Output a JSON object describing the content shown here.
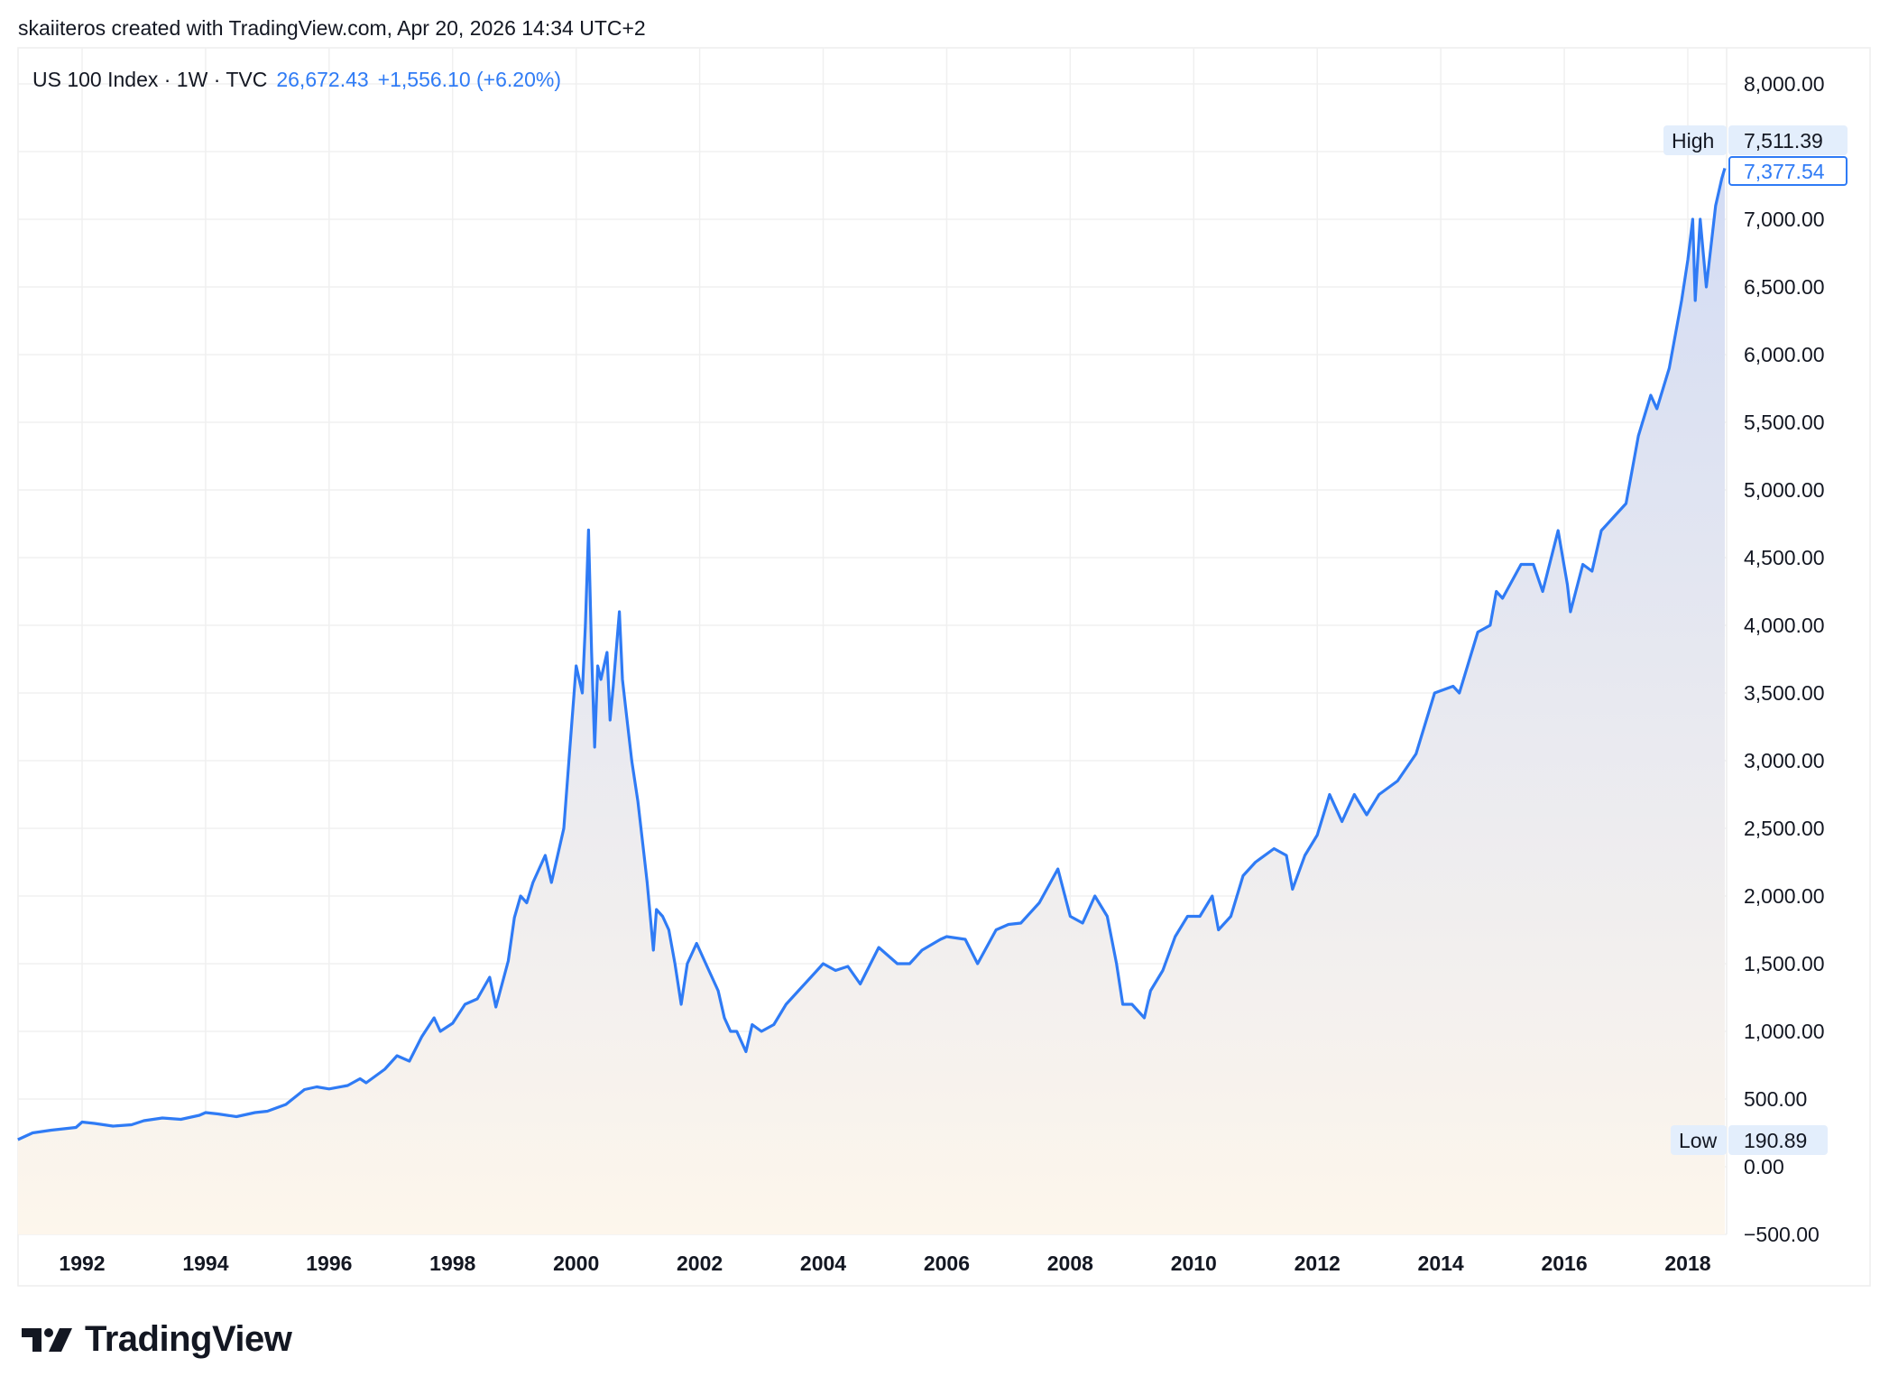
{
  "header": {
    "attribution": "skaiiteros created with TradingView.com, Apr 20, 2026 14:34 UTC+2",
    "symbol": "US 100 Index · 1W · TVC",
    "last_price": "26,672.43",
    "change": "+1,556.10 (+6.20%)"
  },
  "colors": {
    "line": "#2f7bf5",
    "fill_top": "#d3dcf4",
    "fill_bottom": "#fdf6ec",
    "grid": "#f0f0f0",
    "label_bg": "#e3eefc"
  },
  "markers": {
    "high_label": "High",
    "high_value": "7,511.39",
    "current_value": "7,377.54",
    "low_label": "Low",
    "low_value": "190.89"
  },
  "logo": {
    "text": "TradingView"
  },
  "chart_data": {
    "type": "area",
    "grid": true,
    "ylim": [
      -500,
      8000
    ],
    "xlim": [
      1990.96,
      2018.6
    ],
    "y_ticks": [
      "8,000.00",
      "7,000.00",
      "6,500.00",
      "6,000.00",
      "5,500.00",
      "5,000.00",
      "4,500.00",
      "4,000.00",
      "3,500.00",
      "3,000.00",
      "2,500.00",
      "2,000.00",
      "1,500.00",
      "1,000.00",
      "500.00",
      "0.00",
      "−500.00"
    ],
    "y_tick_values": [
      8000,
      7000,
      6500,
      6000,
      5500,
      5000,
      4500,
      4000,
      3500,
      3000,
      2500,
      2000,
      1500,
      1000,
      500,
      0,
      -500
    ],
    "x_ticks": [
      "1992",
      "1994",
      "1996",
      "1998",
      "2000",
      "2002",
      "2004",
      "2006",
      "2008",
      "2010",
      "2012",
      "2014",
      "2016",
      "2018"
    ],
    "series": [
      {
        "x": [
          1990.96,
          1991.2,
          1991.5,
          1991.9,
          1992.0,
          1992.2,
          1992.5,
          1992.8,
          1993.0,
          1993.3,
          1993.6,
          1993.9,
          1994.0,
          1994.2,
          1994.5,
          1994.8,
          1995.0,
          1995.3,
          1995.6,
          1995.8,
          1996.0,
          1996.3,
          1996.5,
          1996.6,
          1996.9,
          1997.1,
          1997.3,
          1997.5,
          1997.7,
          1997.8,
          1998.0,
          1998.2,
          1998.4,
          1998.6,
          1998.7,
          1998.9,
          1999.0,
          1999.1,
          1999.2,
          1999.3,
          1999.5,
          1999.6,
          1999.8,
          1999.9,
          2000.0,
          2000.1,
          2000.15,
          2000.2,
          2000.25,
          2000.3,
          2000.35,
          2000.4,
          2000.5,
          2000.55,
          2000.6,
          2000.7,
          2000.75,
          2000.8,
          2000.9,
          2001.0,
          2001.1,
          2001.15,
          2001.25,
          2001.3,
          2001.4,
          2001.5,
          2001.6,
          2001.7,
          2001.8,
          2001.95,
          2002.1,
          2002.3,
          2002.4,
          2002.5,
          2002.6,
          2002.75,
          2002.85,
          2003.0,
          2003.2,
          2003.4,
          2003.6,
          2003.9,
          2004.0,
          2004.2,
          2004.4,
          2004.6,
          2004.9,
          2005.2,
          2005.4,
          2005.6,
          2005.9,
          2006.0,
          2006.3,
          2006.5,
          2006.8,
          2007.0,
          2007.2,
          2007.5,
          2007.8,
          2008.0,
          2008.2,
          2008.4,
          2008.6,
          2008.75,
          2008.85,
          2009.0,
          2009.2,
          2009.3,
          2009.5,
          2009.7,
          2009.9,
          2010.1,
          2010.3,
          2010.4,
          2010.6,
          2010.8,
          2011.0,
          2011.3,
          2011.5,
          2011.6,
          2011.8,
          2012.0,
          2012.2,
          2012.4,
          2012.6,
          2012.8,
          2013.0,
          2013.3,
          2013.6,
          2013.9,
          2014.2,
          2014.3,
          2014.6,
          2014.8,
          2014.9,
          2015.0,
          2015.3,
          2015.5,
          2015.65,
          2015.9,
          2016.05,
          2016.1,
          2016.3,
          2016.45,
          2016.6,
          2016.8,
          2017.0,
          2017.2,
          2017.4,
          2017.5,
          2017.7,
          2017.9,
          2018.0,
          2018.08,
          2018.12,
          2018.2,
          2018.3,
          2018.45,
          2018.55,
          2018.6
        ],
        "y": [
          200,
          250,
          270,
          290,
          330,
          320,
          300,
          310,
          340,
          360,
          350,
          380,
          400,
          390,
          370,
          400,
          410,
          460,
          570,
          590,
          575,
          600,
          650,
          620,
          720,
          820,
          780,
          960,
          1100,
          1000,
          1060,
          1200,
          1240,
          1400,
          1180,
          1520,
          1840,
          2000,
          1950,
          2100,
          2300,
          2100,
          2500,
          3100,
          3700,
          3500,
          4000,
          4704,
          3800,
          3100,
          3700,
          3600,
          3800,
          3300,
          3550,
          4100,
          3600,
          3400,
          3000,
          2700,
          2300,
          2100,
          1600,
          1900,
          1850,
          1750,
          1500,
          1200,
          1500,
          1650,
          1500,
          1300,
          1100,
          1000,
          1000,
          850,
          1050,
          1000,
          1050,
          1200,
          1300,
          1450,
          1500,
          1450,
          1480,
          1350,
          1620,
          1500,
          1500,
          1600,
          1680,
          1700,
          1680,
          1500,
          1750,
          1790,
          1800,
          1950,
          2200,
          1850,
          1800,
          2000,
          1850,
          1500,
          1200,
          1200,
          1100,
          1300,
          1450,
          1700,
          1850,
          1850,
          2000,
          1750,
          1850,
          2150,
          2250,
          2350,
          2300,
          2050,
          2300,
          2450,
          2750,
          2550,
          2750,
          2600,
          2750,
          2850,
          3050,
          3500,
          3550,
          3500,
          3950,
          4000,
          4250,
          4200,
          4450,
          4450,
          4250,
          4700,
          4300,
          4100,
          4450,
          4400,
          4700,
          4800,
          4900,
          5400,
          5700,
          5600,
          5900,
          6400,
          6700,
          7000,
          6400,
          7000,
          6500,
          7100,
          7300,
          7377.54
        ]
      }
    ],
    "high": 7511.39,
    "current": 7377.54,
    "low": 190.89
  }
}
